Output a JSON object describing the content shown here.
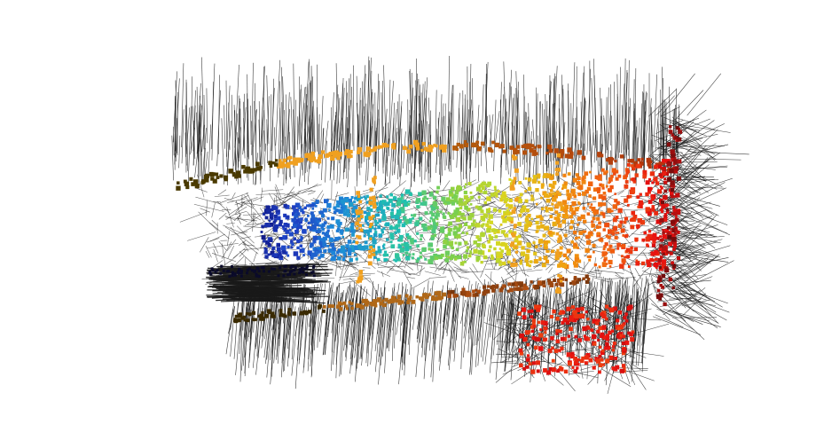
{
  "scene": {
    "background_color": "#ffffff",
    "normal_line_color": "#1a1a1a",
    "colormap": [
      "#0a0a6e",
      "#1f3fc4",
      "#1e88d8",
      "#20c0b0",
      "#7fd04a",
      "#d8d820",
      "#f0a010",
      "#f06010",
      "#e81010",
      "#8a0a0a"
    ],
    "outline_color": "#3a2a00",
    "accent_orange": "#f0a020",
    "seed": 20231
  }
}
